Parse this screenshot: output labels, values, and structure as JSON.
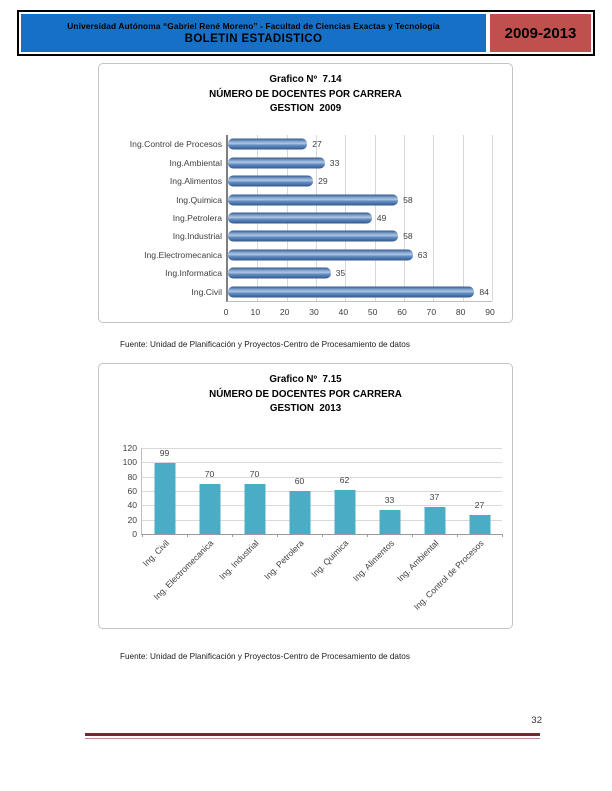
{
  "header": {
    "line1": "Universidad Autónoma “Gabriel René Moreno” - Facultad de Ciencias Exactas y Tecnología",
    "line2": "BOLETIN ESTADISTICO",
    "period": "2009-2013",
    "banner_blue": "#1570C6",
    "banner_red": "#C0504D"
  },
  "chart_data": [
    {
      "type": "bar",
      "orientation": "horizontal",
      "title_lines": [
        "Grafico Nº  7.14",
        "NÚMERO DE DOCENTES POR CARRERA",
        "GESTION  2009"
      ],
      "categories": [
        "Ing.Control de Procesos",
        "Ing.Ambiental",
        "Ing.Alimentos",
        "Ing.Quimica",
        "Ing.Petrolera",
        "Ing.Industrial",
        "Ing.Electromecanica",
        "Ing.Informatica",
        "Ing.Civil"
      ],
      "values": [
        27,
        33,
        29,
        58,
        49,
        58,
        63,
        35,
        84
      ],
      "xlim": [
        0,
        90
      ],
      "tick_step": 10,
      "bar_color": "#4F81BD",
      "grid": "vertical",
      "data_labels": true,
      "legend": "none"
    },
    {
      "type": "bar",
      "orientation": "vertical",
      "title_lines": [
        "Grafico Nº  7.15",
        "NÚMERO DE DOCENTES POR CARRERA",
        "GESTION  2013"
      ],
      "categories": [
        "Ing. Civil",
        "Ing. Electromecanica",
        "Ing. Industrial",
        "Ing. Petrolera",
        "Ing. Quimica",
        "Ing. Alimentos",
        "Ing. Ambiental",
        "Ing. Control de Procesos"
      ],
      "values": [
        99,
        70,
        70,
        60,
        62,
        33,
        37,
        27
      ],
      "ylim": [
        0,
        120
      ],
      "tick_step": 20,
      "bar_color": "#4BACC6",
      "grid": "horizontal",
      "data_labels": true,
      "legend": "none"
    }
  ],
  "source_notes": [
    "Fuente: Unidad de Planificación y Proyectos-Centro de Procesamiento de datos",
    "Fuente: Unidad de Planificación y Proyectos-Centro de Procesamiento de datos"
  ],
  "page_number": "32"
}
